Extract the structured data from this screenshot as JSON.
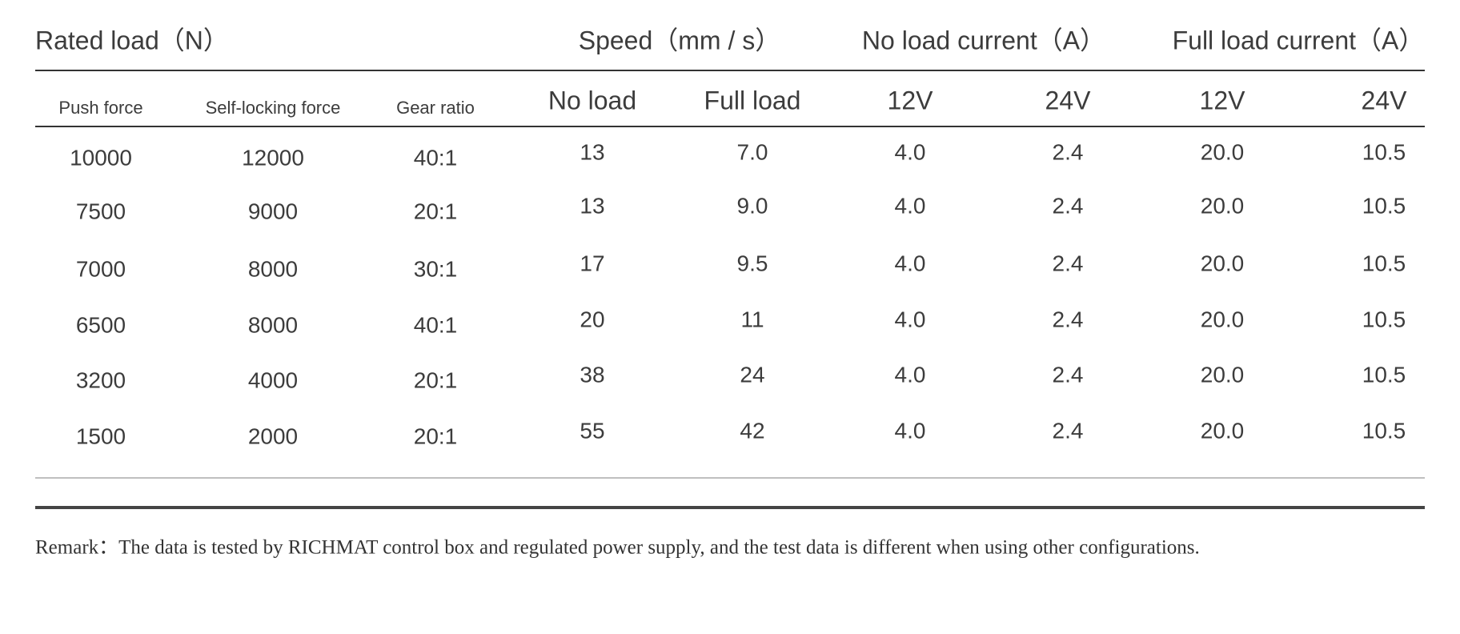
{
  "table": {
    "groups": [
      "Rated load（N）",
      "Speed（mm / s）",
      "No load current（A）",
      "Full load current（A）"
    ],
    "columns": [
      "Push force",
      "Self-locking force",
      "Gear ratio",
      "No load",
      "Full load",
      "12V",
      "24V",
      "12V",
      "24V"
    ],
    "rows": [
      [
        "10000",
        "12000",
        "40:1",
        "13",
        "7.0",
        "4.0",
        "2.4",
        "20.0",
        "10.5"
      ],
      [
        "7500",
        "9000",
        "20:1",
        "13",
        "9.0",
        "4.0",
        "2.4",
        "20.0",
        "10.5"
      ],
      [
        "7000",
        "8000",
        "30:1",
        "17",
        "9.5",
        "4.0",
        "2.4",
        "20.0",
        "10.5"
      ],
      [
        "6500",
        "8000",
        "40:1",
        "20",
        "11",
        "4.0",
        "2.4",
        "20.0",
        "10.5"
      ],
      [
        "3200",
        "4000",
        "20:1",
        "38",
        "24",
        "4.0",
        "2.4",
        "20.0",
        "10.5"
      ],
      [
        "1500",
        "2000",
        "20:1",
        "55",
        "42",
        "4.0",
        "2.4",
        "20.0",
        "10.5"
      ]
    ]
  },
  "remark": "Remark：The data is tested by RICHMAT control box and regulated power supply, and the test data is different when using other configurations."
}
